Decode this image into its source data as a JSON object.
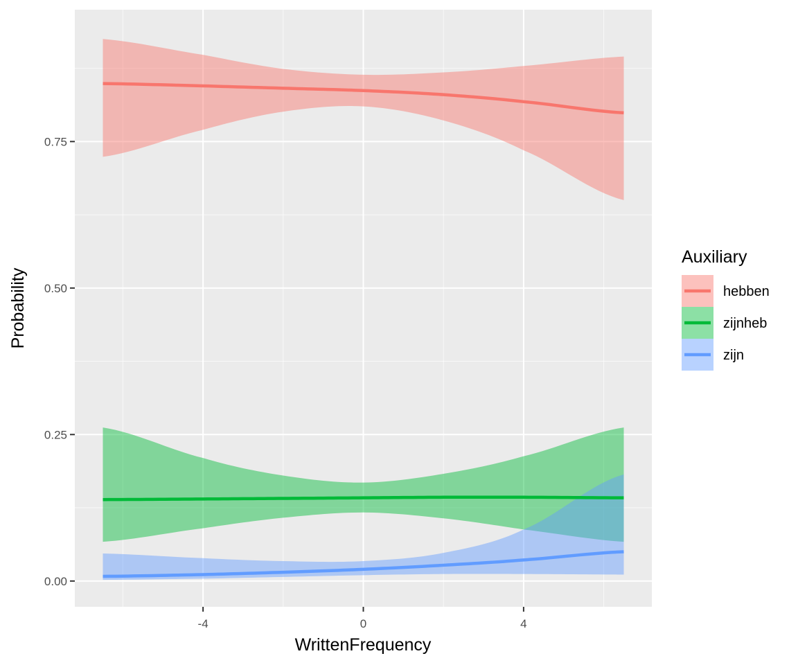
{
  "chart_data": {
    "type": "line",
    "xlabel": "WrittenFrequency",
    "ylabel": "Probability",
    "xlim": [
      -7.2,
      7.2
    ],
    "ylim": [
      -0.044,
      0.975
    ],
    "x_ticks": [
      {
        "value": -4,
        "label": "-4"
      },
      {
        "value": 0,
        "label": "0"
      },
      {
        "value": 4,
        "label": "4"
      }
    ],
    "y_ticks": [
      {
        "value": 0.0,
        "label": "0.00"
      },
      {
        "value": 0.25,
        "label": "0.25"
      },
      {
        "value": 0.5,
        "label": "0.50"
      },
      {
        "value": 0.75,
        "label": "0.75"
      }
    ],
    "grid": true,
    "legend": {
      "title": "Auxiliary",
      "position": "right"
    },
    "series": [
      {
        "name": "hebben",
        "color": "#F8766D",
        "x": [
          -6.5,
          -4,
          -2,
          0,
          2,
          4,
          6.5
        ],
        "values": [
          0.849,
          0.845,
          0.841,
          0.837,
          0.83,
          0.818,
          0.799
        ],
        "lower": [
          0.724,
          0.77,
          0.801,
          0.81,
          0.786,
          0.735,
          0.65
        ],
        "upper": [
          0.925,
          0.898,
          0.874,
          0.864,
          0.868,
          0.879,
          0.895
        ]
      },
      {
        "name": "zijnheb",
        "color": "#00BA38",
        "x": [
          -6.5,
          -4,
          -2,
          0,
          2,
          4,
          6.5
        ],
        "values": [
          0.139,
          0.14,
          0.141,
          0.142,
          0.143,
          0.143,
          0.142
        ],
        "lower": [
          0.067,
          0.09,
          0.108,
          0.117,
          0.107,
          0.088,
          0.067
        ],
        "upper": [
          0.262,
          0.21,
          0.18,
          0.168,
          0.183,
          0.213,
          0.262
        ]
      },
      {
        "name": "zijn",
        "color": "#619CFF",
        "x": [
          -6.5,
          -4,
          -2,
          0,
          2,
          4,
          6.5
        ],
        "values": [
          0.008,
          0.011,
          0.015,
          0.02,
          0.027,
          0.036,
          0.05
        ],
        "lower": [
          0.002,
          0.004,
          0.007,
          0.01,
          0.012,
          0.012,
          0.011
        ],
        "upper": [
          0.047,
          0.039,
          0.034,
          0.034,
          0.048,
          0.088,
          0.182
        ]
      }
    ]
  }
}
